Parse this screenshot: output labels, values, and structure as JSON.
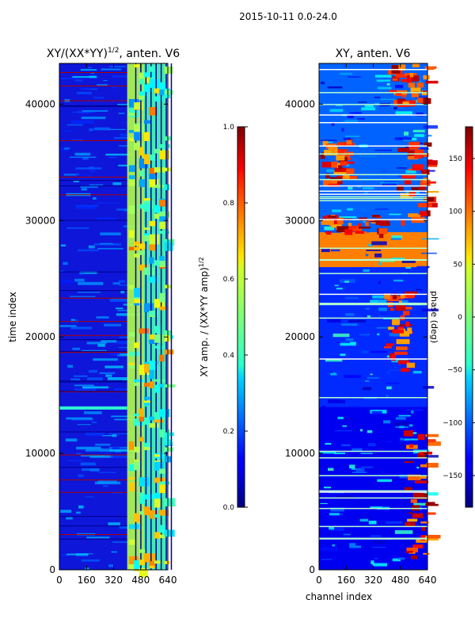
{
  "figure_title": "2015-10-11 0.0-24.0",
  "chart_data": [
    {
      "type": "heatmap",
      "title_main": "XY/(XX*YY)",
      "title_exp": "1/2",
      "title_suffix": ", anten. V6",
      "xlabel": "",
      "ylabel": "time index",
      "xlim": [
        0,
        640
      ],
      "ylim": [
        0,
        43500
      ],
      "xticks": [
        0,
        160,
        320,
        480,
        640
      ],
      "yticks": [
        0,
        10000,
        20000,
        30000,
        40000
      ],
      "colormap": "jet",
      "colorbar": {
        "label_main": "XY amp. / (XX*YY amp)",
        "label_exp": "1/2",
        "range": [
          0.0,
          1.0
        ],
        "ticks": [
          0.0,
          0.2,
          0.4,
          0.6,
          0.8,
          1.0
        ],
        "tick_labels": [
          "0.0",
          "0.2",
          "0.4",
          "0.6",
          "0.8",
          "1.0"
        ]
      },
      "approx_level_by_channel_band": [
        {
          "channels": [
            0,
            400
          ],
          "level": 0.18
        },
        {
          "channels": [
            400,
            500
          ],
          "level": 0.55
        },
        {
          "channels": [
            500,
            640
          ],
          "level": 0.45
        }
      ]
    },
    {
      "type": "heatmap",
      "title_main": "XY, anten. V6",
      "xlabel": "channel index",
      "ylabel": "",
      "ylabel_right": "phase (deg)",
      "xlim": [
        0,
        640
      ],
      "ylim": [
        0,
        43500
      ],
      "xticks": [
        0,
        160,
        320,
        480,
        640
      ],
      "yticks": [
        0,
        10000,
        20000,
        30000,
        40000
      ],
      "colormap": "jet",
      "colorbar": {
        "range": [
          -180,
          180
        ],
        "ticks": [
          -150,
          -100,
          -50,
          0,
          50,
          100,
          150
        ],
        "tick_labels": [
          "−150",
          "−100",
          "−50",
          "0",
          "50",
          "100",
          "150"
        ]
      },
      "approx_phase_by_time_band": [
        {
          "time": [
            0,
            14000
          ],
          "phase_deg": -140
        },
        {
          "time": [
            14000,
            26000
          ],
          "phase_deg": -120
        },
        {
          "time": [
            26000,
            29000
          ],
          "phase_deg": 90
        },
        {
          "time": [
            29000,
            43500
          ],
          "phase_deg": -100
        }
      ]
    }
  ]
}
